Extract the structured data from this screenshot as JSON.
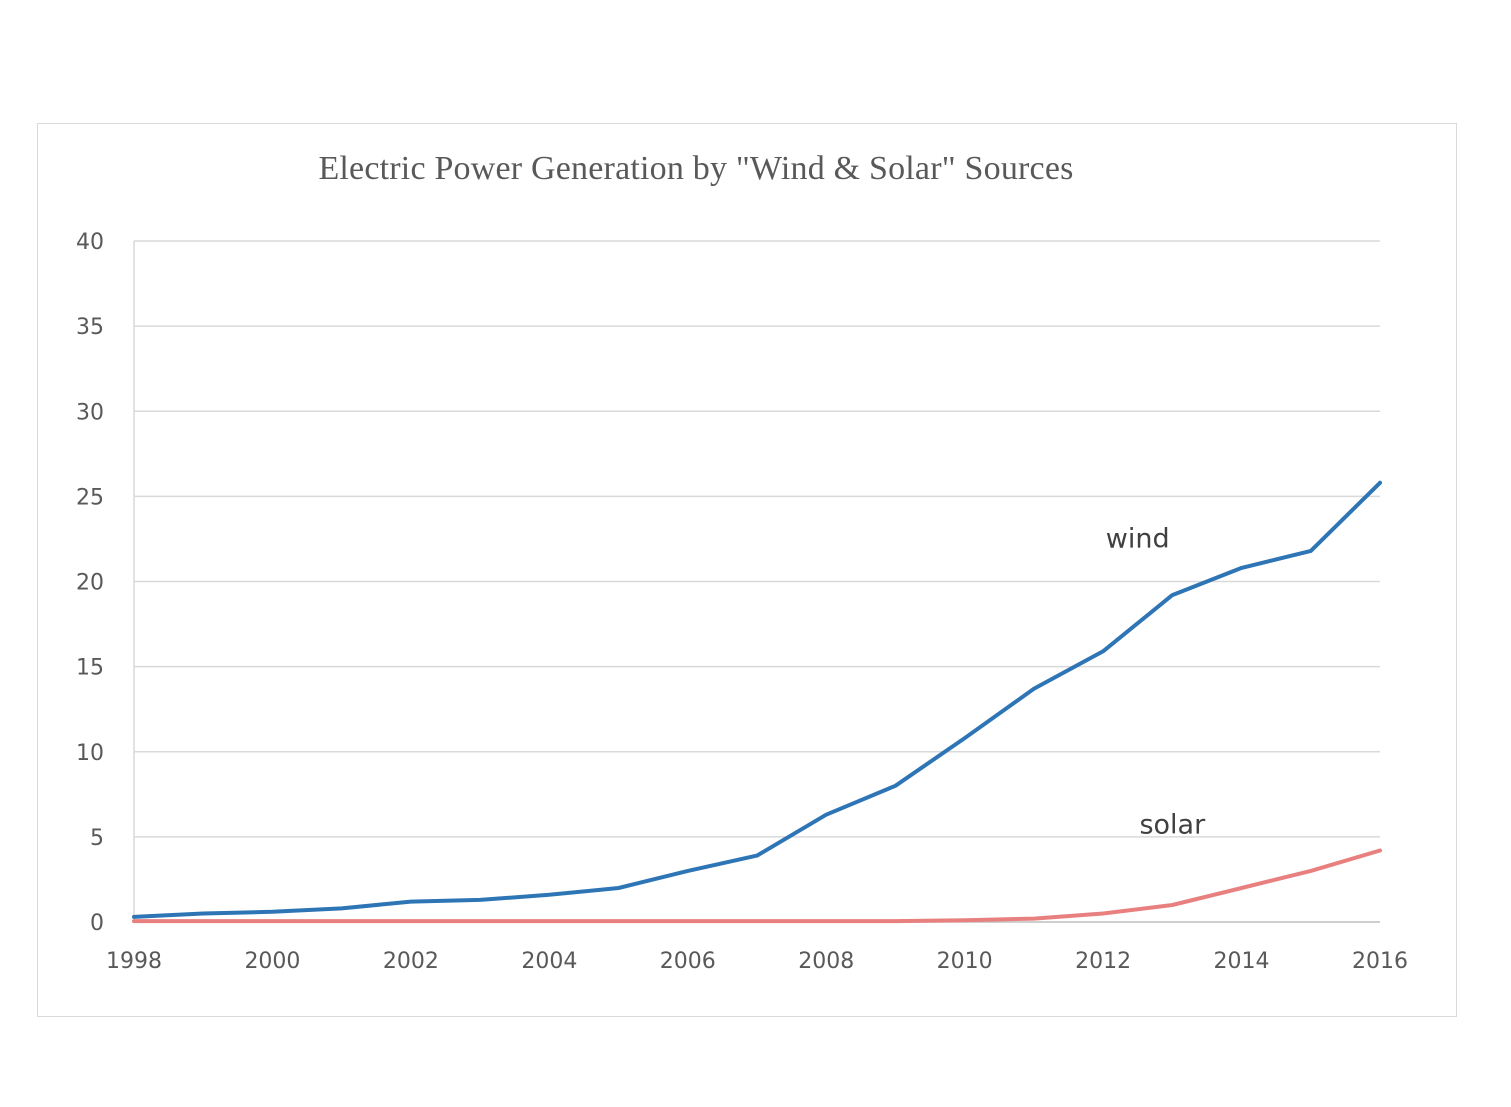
{
  "chart_data": {
    "type": "line",
    "title": "Electric Power Generation by \"Wind & Solar\" Sources",
    "xlabel": "",
    "ylabel": "",
    "xlim": [
      1998,
      2016
    ],
    "ylim": [
      0,
      40
    ],
    "x_ticks": [
      1998,
      2000,
      2002,
      2004,
      2006,
      2008,
      2010,
      2012,
      2014,
      2016
    ],
    "y_ticks": [
      0,
      5,
      10,
      15,
      20,
      25,
      30,
      35,
      40
    ],
    "grid": "horizontal",
    "legend": "none",
    "x": [
      1998,
      1999,
      2000,
      2001,
      2002,
      2003,
      2004,
      2005,
      2006,
      2007,
      2008,
      2009,
      2010,
      2011,
      2012,
      2013,
      2014,
      2015,
      2016
    ],
    "series": [
      {
        "name": "wind",
        "color": "#2e75b6",
        "values": [
          0.3,
          0.5,
          0.6,
          0.8,
          1.2,
          1.3,
          1.6,
          2.0,
          3.0,
          3.9,
          6.3,
          8.0,
          10.8,
          13.7,
          15.9,
          19.2,
          20.8,
          21.8,
          25.8
        ]
      },
      {
        "name": "solar",
        "color": "#e88080",
        "values": [
          0.05,
          0.05,
          0.05,
          0.05,
          0.05,
          0.05,
          0.05,
          0.05,
          0.05,
          0.05,
          0.05,
          0.05,
          0.1,
          0.2,
          0.5,
          1.0,
          2.0,
          3.0,
          4.2
        ]
      }
    ]
  }
}
